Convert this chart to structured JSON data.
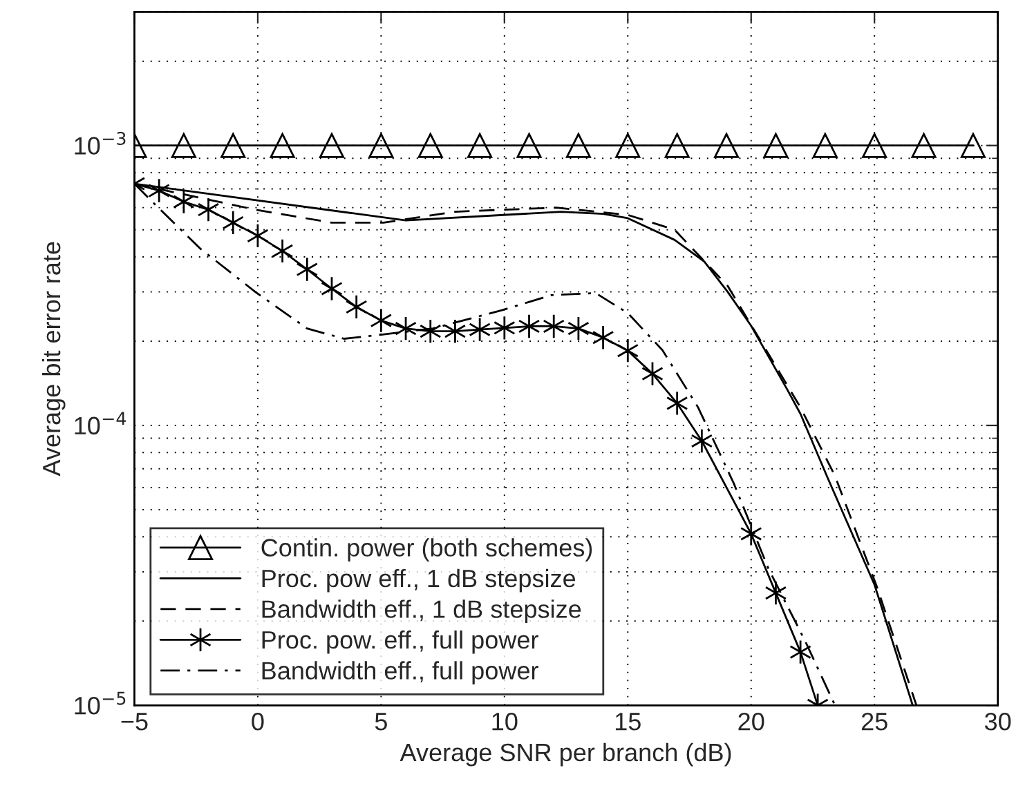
{
  "chart_data": {
    "type": "line",
    "xlabel": "Average SNR per branch (dB)",
    "ylabel": "Average bit error rate",
    "log": "y",
    "grid": true,
    "legend": "bottom left",
    "xlim": [
      -5,
      30
    ],
    "xticks": [
      -5,
      0,
      5,
      10,
      15,
      20,
      25,
      30
    ],
    "ylim": [
      1e-05,
      0.003
    ],
    "yticks": [
      {
        "value": 1e-05,
        "label": "10$^{−5}$"
      },
      {
        "value": 0.0001,
        "label": "10$^{−4}$"
      },
      {
        "value": 0.001,
        "label": "10$^{−3}$"
      }
    ],
    "series": [
      {
        "name": "Contin. power (both schemes)",
        "color": "#000000",
        "marker": "triangle",
        "line_style": "solid",
        "x": [
          -5,
          -3,
          -1,
          1,
          3,
          5,
          7,
          9,
          11,
          13,
          15,
          17,
          19,
          21,
          23,
          25,
          27,
          29
        ],
        "values": [
          0.001,
          0.001,
          0.001,
          0.001,
          0.001,
          0.001,
          0.001,
          0.001,
          0.001,
          0.001,
          0.001,
          0.001,
          0.001,
          0.001,
          0.001,
          0.001,
          0.001,
          0.001
        ]
      },
      {
        "name": "Proc. pow eff., 1 dB stepsize",
        "color": "#000000",
        "marker": "none",
        "line_style": "solid",
        "x": [
          -5,
          6,
          12.3,
          14,
          15,
          16.9,
          18.1,
          19.05,
          20,
          21.45,
          22,
          23.1,
          25,
          26.55
        ],
        "values": [
          0.00073,
          0.00054,
          0.00058,
          0.00057,
          0.00055,
          0.00046,
          0.000385,
          0.0003,
          0.000227,
          0.000135,
          0.00011,
          6.5e-05,
          2.7e-05,
          1e-05
        ]
      },
      {
        "name": "Bandwidth eff., 1 dB stepsize",
        "color": "#000000",
        "marker": "none",
        "line_style": "dashed",
        "x": [
          -5,
          -0.1,
          3,
          5.1,
          8,
          12.1,
          15,
          16.9,
          19.05,
          22,
          23.4,
          25.1,
          26.7
        ],
        "values": [
          0.00073,
          0.00059,
          0.00053,
          0.00053,
          0.00058,
          0.0006,
          0.000565,
          0.0005,
          0.000315,
          0.000116,
          6.6e-05,
          2.65e-05,
          1e-05
        ]
      },
      {
        "name": "Proc. pow. eff., full power",
        "color": "#000000",
        "marker": "cross",
        "line_style": "solid",
        "x": [
          -5,
          -4,
          -3,
          -2,
          -1,
          0,
          1,
          2,
          3,
          4,
          5,
          6,
          7,
          8,
          9,
          10,
          11,
          12,
          13,
          14,
          15,
          16,
          17,
          18,
          19,
          20,
          21,
          22,
          22.7
        ],
        "values": [
          0.00073,
          0.00069,
          0.00063,
          0.00059,
          0.00053,
          0.000476,
          0.00042,
          0.000361,
          0.000308,
          0.000265,
          0.000237,
          0.000222,
          0.000217,
          0.000217,
          0.00022,
          0.000223,
          0.000226,
          0.000226,
          0.000222,
          0.000206,
          0.000185,
          0.000153,
          0.00012,
          8.8e-05,
          null,
          4.1e-05,
          2.52e-05,
          1.55e-05,
          1e-05
        ]
      },
      {
        "name": "Bandwidth eff., full power",
        "color": "#000000",
        "marker": "none",
        "line_style": "dashdot",
        "x": [
          -5,
          -4.2,
          -2.3,
          -0.1,
          2,
          3.5,
          5,
          7.1,
          9.9,
          11.9,
          13.7,
          15,
          16.4,
          17.85,
          19.3,
          20.7,
          22.2,
          23.4
        ],
        "values": [
          0.00073,
          0.00062,
          0.000426,
          0.0003,
          0.000222,
          0.000204,
          0.000211,
          0.000222,
          0.000258,
          0.000292,
          0.000297,
          0.000252,
          0.000186,
          0.000116,
          6.2e-05,
          3.08e-05,
          1.69e-05,
          1e-05
        ]
      }
    ]
  }
}
